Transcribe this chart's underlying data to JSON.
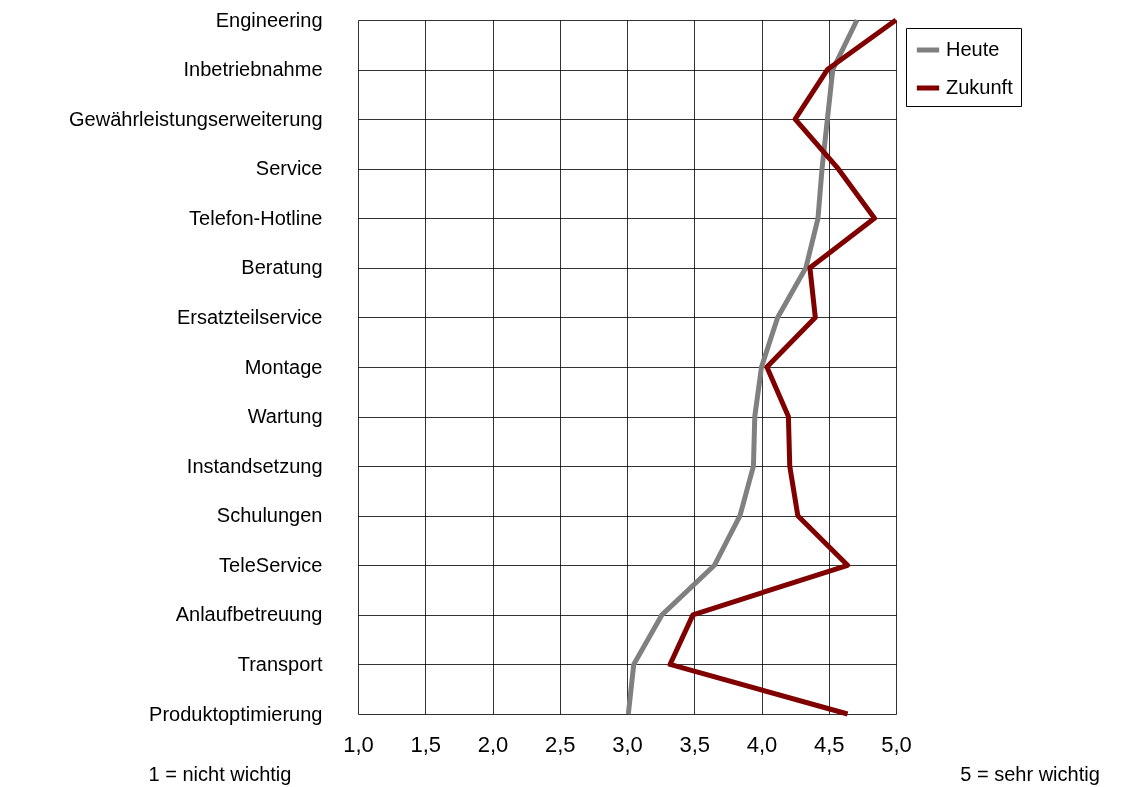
{
  "chart_data": {
    "type": "line",
    "orientation": "horizontal",
    "categories": [
      "Engineering",
      "Inbetriebnahme",
      "Gewährleistungserweiterung",
      "Service",
      "Telefon-Hotline",
      "Beratung",
      "Ersatzteilservice",
      "Montage",
      "Wartung",
      "Instandsetzung",
      "Schulungen",
      "TeleService",
      "Anlaufbetreuung",
      "Transport",
      "Produktoptimierung"
    ],
    "series": [
      {
        "name": "Heute",
        "color": "#808080",
        "values": [
          4.71,
          4.53,
          4.49,
          4.45,
          4.42,
          4.33,
          4.12,
          4.0,
          3.95,
          3.94,
          3.84,
          3.65,
          3.26,
          3.05,
          3.01
        ]
      },
      {
        "name": "Zukunft",
        "color": "#800000",
        "values": [
          5.0,
          4.49,
          4.25,
          4.57,
          4.84,
          4.36,
          4.4,
          4.04,
          4.2,
          4.21,
          4.27,
          4.64,
          3.49,
          3.32,
          4.64
        ]
      }
    ],
    "xlim": [
      1.0,
      5.0
    ],
    "xticks": [
      {
        "value": 1.0,
        "label": "1,0"
      },
      {
        "value": 1.5,
        "label": "1,5"
      },
      {
        "value": 2.0,
        "label": "2,0"
      },
      {
        "value": 2.5,
        "label": "2,5"
      },
      {
        "value": 3.0,
        "label": "3,0"
      },
      {
        "value": 3.5,
        "label": "3,5"
      },
      {
        "value": 4.0,
        "label": "4,0"
      },
      {
        "value": 4.5,
        "label": "4,5"
      },
      {
        "value": 5.0,
        "label": "5,0"
      }
    ],
    "annotations": [
      "1 = nicht wichtig",
      "5 = sehr wichtig"
    ],
    "grid": true,
    "legend": "top right"
  }
}
